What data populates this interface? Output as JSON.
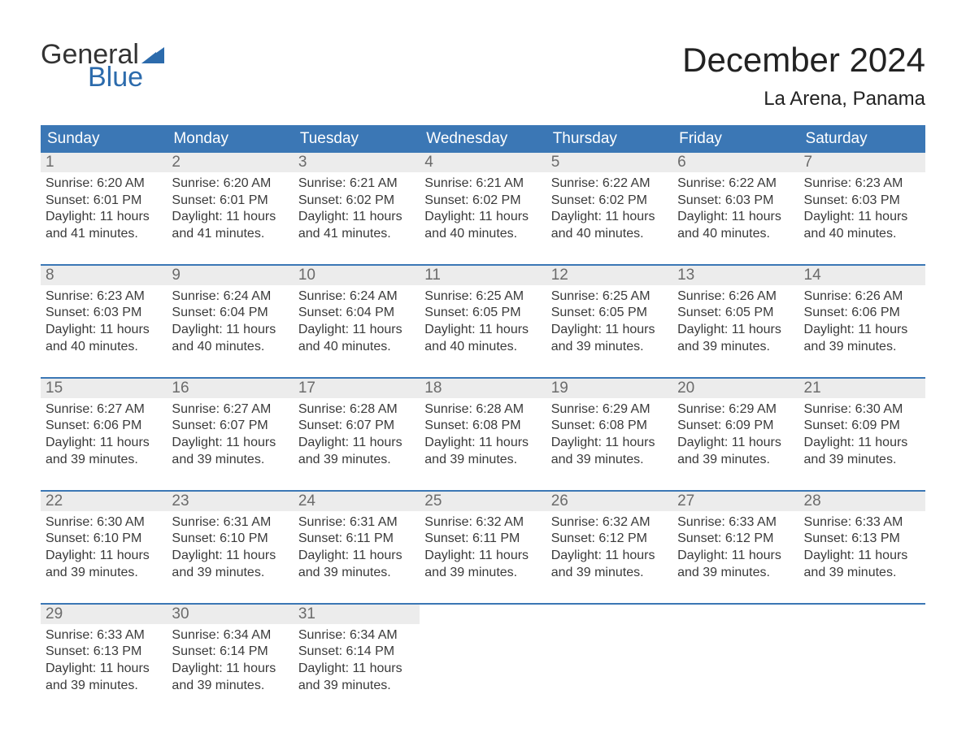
{
  "logo": {
    "word1": "General",
    "word2": "Blue",
    "flag_color": "#2c6bac"
  },
  "title": "December 2024",
  "location": "La Arena, Panama",
  "colors": {
    "header_bg": "#3b77b5",
    "header_text": "#ffffff",
    "daynum_bg": "#ececec",
    "daynum_text": "#6b6b6b",
    "body_text": "#3a3a3a",
    "rule": "#3b77b5",
    "page_bg": "#ffffff"
  },
  "typography": {
    "title_fontsize": 42,
    "location_fontsize": 24,
    "weekday_fontsize": 19,
    "daynum_fontsize": 19,
    "body_fontsize": 16,
    "font_family": "Arial"
  },
  "weekdays": [
    "Sunday",
    "Monday",
    "Tuesday",
    "Wednesday",
    "Thursday",
    "Friday",
    "Saturday"
  ],
  "weeks": [
    [
      {
        "n": "1",
        "sr": "Sunrise: 6:20 AM",
        "ss": "Sunset: 6:01 PM",
        "d1": "Daylight: 11 hours",
        "d2": "and 41 minutes."
      },
      {
        "n": "2",
        "sr": "Sunrise: 6:20 AM",
        "ss": "Sunset: 6:01 PM",
        "d1": "Daylight: 11 hours",
        "d2": "and 41 minutes."
      },
      {
        "n": "3",
        "sr": "Sunrise: 6:21 AM",
        "ss": "Sunset: 6:02 PM",
        "d1": "Daylight: 11 hours",
        "d2": "and 41 minutes."
      },
      {
        "n": "4",
        "sr": "Sunrise: 6:21 AM",
        "ss": "Sunset: 6:02 PM",
        "d1": "Daylight: 11 hours",
        "d2": "and 40 minutes."
      },
      {
        "n": "5",
        "sr": "Sunrise: 6:22 AM",
        "ss": "Sunset: 6:02 PM",
        "d1": "Daylight: 11 hours",
        "d2": "and 40 minutes."
      },
      {
        "n": "6",
        "sr": "Sunrise: 6:22 AM",
        "ss": "Sunset: 6:03 PM",
        "d1": "Daylight: 11 hours",
        "d2": "and 40 minutes."
      },
      {
        "n": "7",
        "sr": "Sunrise: 6:23 AM",
        "ss": "Sunset: 6:03 PM",
        "d1": "Daylight: 11 hours",
        "d2": "and 40 minutes."
      }
    ],
    [
      {
        "n": "8",
        "sr": "Sunrise: 6:23 AM",
        "ss": "Sunset: 6:03 PM",
        "d1": "Daylight: 11 hours",
        "d2": "and 40 minutes."
      },
      {
        "n": "9",
        "sr": "Sunrise: 6:24 AM",
        "ss": "Sunset: 6:04 PM",
        "d1": "Daylight: 11 hours",
        "d2": "and 40 minutes."
      },
      {
        "n": "10",
        "sr": "Sunrise: 6:24 AM",
        "ss": "Sunset: 6:04 PM",
        "d1": "Daylight: 11 hours",
        "d2": "and 40 minutes."
      },
      {
        "n": "11",
        "sr": "Sunrise: 6:25 AM",
        "ss": "Sunset: 6:05 PM",
        "d1": "Daylight: 11 hours",
        "d2": "and 40 minutes."
      },
      {
        "n": "12",
        "sr": "Sunrise: 6:25 AM",
        "ss": "Sunset: 6:05 PM",
        "d1": "Daylight: 11 hours",
        "d2": "and 39 minutes."
      },
      {
        "n": "13",
        "sr": "Sunrise: 6:26 AM",
        "ss": "Sunset: 6:05 PM",
        "d1": "Daylight: 11 hours",
        "d2": "and 39 minutes."
      },
      {
        "n": "14",
        "sr": "Sunrise: 6:26 AM",
        "ss": "Sunset: 6:06 PM",
        "d1": "Daylight: 11 hours",
        "d2": "and 39 minutes."
      }
    ],
    [
      {
        "n": "15",
        "sr": "Sunrise: 6:27 AM",
        "ss": "Sunset: 6:06 PM",
        "d1": "Daylight: 11 hours",
        "d2": "and 39 minutes."
      },
      {
        "n": "16",
        "sr": "Sunrise: 6:27 AM",
        "ss": "Sunset: 6:07 PM",
        "d1": "Daylight: 11 hours",
        "d2": "and 39 minutes."
      },
      {
        "n": "17",
        "sr": "Sunrise: 6:28 AM",
        "ss": "Sunset: 6:07 PM",
        "d1": "Daylight: 11 hours",
        "d2": "and 39 minutes."
      },
      {
        "n": "18",
        "sr": "Sunrise: 6:28 AM",
        "ss": "Sunset: 6:08 PM",
        "d1": "Daylight: 11 hours",
        "d2": "and 39 minutes."
      },
      {
        "n": "19",
        "sr": "Sunrise: 6:29 AM",
        "ss": "Sunset: 6:08 PM",
        "d1": "Daylight: 11 hours",
        "d2": "and 39 minutes."
      },
      {
        "n": "20",
        "sr": "Sunrise: 6:29 AM",
        "ss": "Sunset: 6:09 PM",
        "d1": "Daylight: 11 hours",
        "d2": "and 39 minutes."
      },
      {
        "n": "21",
        "sr": "Sunrise: 6:30 AM",
        "ss": "Sunset: 6:09 PM",
        "d1": "Daylight: 11 hours",
        "d2": "and 39 minutes."
      }
    ],
    [
      {
        "n": "22",
        "sr": "Sunrise: 6:30 AM",
        "ss": "Sunset: 6:10 PM",
        "d1": "Daylight: 11 hours",
        "d2": "and 39 minutes."
      },
      {
        "n": "23",
        "sr": "Sunrise: 6:31 AM",
        "ss": "Sunset: 6:10 PM",
        "d1": "Daylight: 11 hours",
        "d2": "and 39 minutes."
      },
      {
        "n": "24",
        "sr": "Sunrise: 6:31 AM",
        "ss": "Sunset: 6:11 PM",
        "d1": "Daylight: 11 hours",
        "d2": "and 39 minutes."
      },
      {
        "n": "25",
        "sr": "Sunrise: 6:32 AM",
        "ss": "Sunset: 6:11 PM",
        "d1": "Daylight: 11 hours",
        "d2": "and 39 minutes."
      },
      {
        "n": "26",
        "sr": "Sunrise: 6:32 AM",
        "ss": "Sunset: 6:12 PM",
        "d1": "Daylight: 11 hours",
        "d2": "and 39 minutes."
      },
      {
        "n": "27",
        "sr": "Sunrise: 6:33 AM",
        "ss": "Sunset: 6:12 PM",
        "d1": "Daylight: 11 hours",
        "d2": "and 39 minutes."
      },
      {
        "n": "28",
        "sr": "Sunrise: 6:33 AM",
        "ss": "Sunset: 6:13 PM",
        "d1": "Daylight: 11 hours",
        "d2": "and 39 minutes."
      }
    ],
    [
      {
        "n": "29",
        "sr": "Sunrise: 6:33 AM",
        "ss": "Sunset: 6:13 PM",
        "d1": "Daylight: 11 hours",
        "d2": "and 39 minutes."
      },
      {
        "n": "30",
        "sr": "Sunrise: 6:34 AM",
        "ss": "Sunset: 6:14 PM",
        "d1": "Daylight: 11 hours",
        "d2": "and 39 minutes."
      },
      {
        "n": "31",
        "sr": "Sunrise: 6:34 AM",
        "ss": "Sunset: 6:14 PM",
        "d1": "Daylight: 11 hours",
        "d2": "and 39 minutes."
      },
      {
        "empty": true
      },
      {
        "empty": true
      },
      {
        "empty": true
      },
      {
        "empty": true
      }
    ]
  ]
}
